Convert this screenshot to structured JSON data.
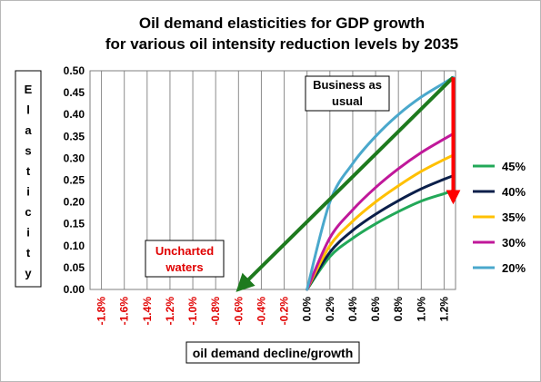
{
  "chart_data": {
    "type": "line",
    "title": [
      "Oil demand elasticities for GDP growth",
      "for various oil intensity reduction levels by 2035"
    ],
    "xlabel": "oil demand decline/growth",
    "ylabel": "Elasticity",
    "xlim": [
      -1.9,
      1.3
    ],
    "ylim": [
      0,
      0.5
    ],
    "x_ticks": [
      -1.8,
      -1.6,
      -1.4,
      -1.2,
      -1.0,
      -0.8,
      -0.6,
      -0.4,
      -0.2,
      0.0,
      0.2,
      0.4,
      0.6,
      0.8,
      1.0,
      1.2
    ],
    "x_tick_labels": [
      "-1.8%",
      "-1.6%",
      "-1.4%",
      "-1.2%",
      "-1.0%",
      "-0.8%",
      "-0.6%",
      "-0.4%",
      "-0.2%",
      "0.0%",
      "0.2%",
      "0.4%",
      "0.6%",
      "0.8%",
      "1.0%",
      "1.2%"
    ],
    "negative_tick_color": "#e00000",
    "positive_tick_color": "#000000",
    "y_ticks": [
      0,
      0.05,
      0.1,
      0.15,
      0.2,
      0.25,
      0.3,
      0.35,
      0.4,
      0.45,
      0.5
    ],
    "y_tick_labels": [
      "0.00",
      "0.05",
      "0.10",
      "0.15",
      "0.20",
      "0.25",
      "0.30",
      "0.35",
      "0.40",
      "0.45",
      "0.50"
    ],
    "grid": "vertical",
    "legend_position": "right",
    "series": [
      {
        "name": "45%",
        "color": "#22a858",
        "x": [
          0,
          0.2,
          0.4,
          0.6,
          0.8,
          1.0,
          1.2,
          1.28
        ],
        "y": [
          0,
          0.075,
          0.117,
          0.15,
          0.178,
          0.202,
          0.219,
          0.226
        ]
      },
      {
        "name": "40%",
        "color": "#0b1f4a",
        "x": [
          0,
          0.2,
          0.4,
          0.6,
          0.8,
          1.0,
          1.2,
          1.28
        ],
        "y": [
          0,
          0.085,
          0.135,
          0.172,
          0.203,
          0.23,
          0.252,
          0.26
        ]
      },
      {
        "name": "35%",
        "color": "#ffc000",
        "x": [
          0,
          0.2,
          0.4,
          0.6,
          0.8,
          1.0,
          1.2,
          1.28
        ],
        "y": [
          0,
          0.1,
          0.156,
          0.2,
          0.237,
          0.27,
          0.297,
          0.307
        ]
      },
      {
        "name": "30%",
        "color": "#c0189a",
        "x": [
          0,
          0.2,
          0.4,
          0.6,
          0.8,
          1.0,
          1.2,
          1.28
        ],
        "y": [
          0,
          0.118,
          0.182,
          0.233,
          0.276,
          0.313,
          0.344,
          0.356
        ]
      },
      {
        "name": "20%",
        "color": "#4aa8cc",
        "x": [
          0,
          0.2,
          0.4,
          0.6,
          0.8,
          1.0,
          1.2,
          1.28
        ],
        "y": [
          0,
          0.2,
          0.288,
          0.35,
          0.4,
          0.44,
          0.472,
          0.485
        ]
      }
    ],
    "annotations": {
      "business_as_usual": "Business as usual",
      "uncharted_waters": "Uncharted waters",
      "trend_arrow": {
        "color": "#1e7a1e",
        "from": [
          1.28,
          0.485
        ],
        "to": [
          -0.6,
          0
        ]
      },
      "drop_arrow": {
        "color": "#ff0000",
        "from": [
          1.28,
          0.485
        ],
        "to": [
          1.28,
          0.226
        ]
      }
    }
  }
}
